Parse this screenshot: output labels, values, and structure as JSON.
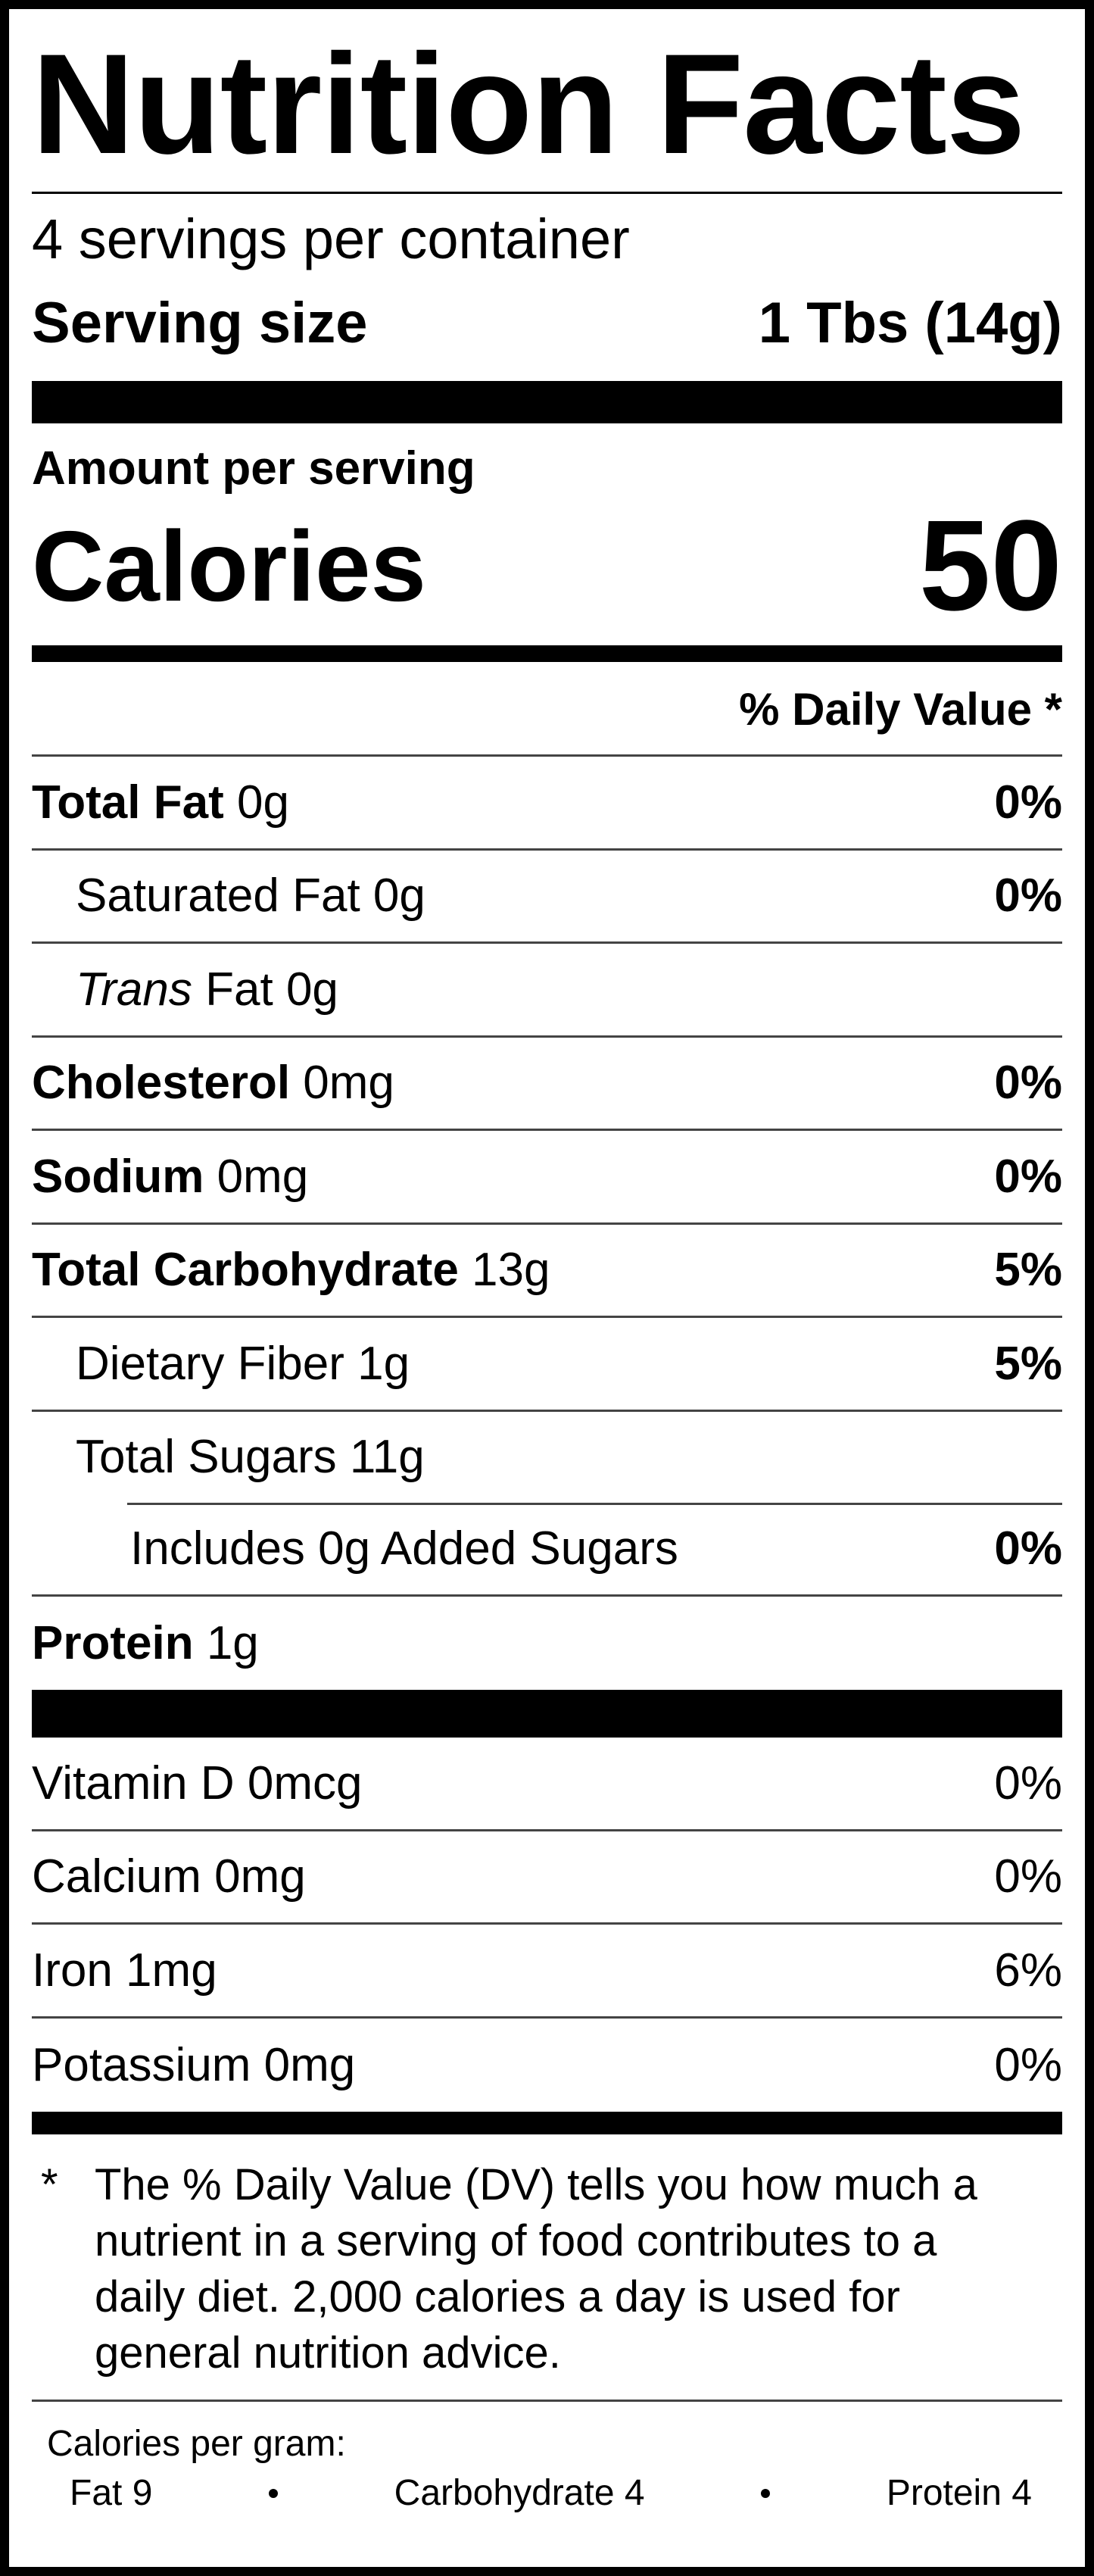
{
  "title": "Nutrition Facts",
  "servings": "4 servings per container",
  "serving_size": {
    "label": "Serving size",
    "value": "1 Tbs (14g)"
  },
  "amount_per_serving": "Amount per serving",
  "calories": {
    "label": "Calories",
    "value": "50"
  },
  "daily_value_header": "% Daily Value *",
  "nutrients": [
    {
      "name": "Total Fat",
      "amount": "0g",
      "dv": "0%"
    },
    {
      "name": "Saturated Fat",
      "amount": "0g",
      "dv": "0%"
    },
    {
      "name_italic": "Trans",
      "name": "Fat",
      "amount": "0g"
    },
    {
      "name": "Cholesterol",
      "amount": "0mg",
      "dv": "0%"
    },
    {
      "name": "Sodium",
      "amount": "0mg",
      "dv": "0%"
    },
    {
      "name": "Total Carbohydrate",
      "amount": "13g",
      "dv": "5%"
    },
    {
      "name": "Dietary Fiber",
      "amount": "1g",
      "dv": "5%"
    },
    {
      "name": "Total Sugars",
      "amount": "11g"
    },
    {
      "text": "Includes 0g Added Sugars",
      "dv": "0%"
    },
    {
      "name": "Protein",
      "amount": "1g"
    }
  ],
  "vitamins": [
    {
      "text": "Vitamin D 0mcg",
      "dv": "0%"
    },
    {
      "text": "Calcium 0mg",
      "dv": "0%"
    },
    {
      "text": "Iron 1mg",
      "dv": "6%"
    },
    {
      "text": "Potassium 0mg",
      "dv": "0%"
    }
  ],
  "footnote": {
    "marker": "*",
    "text": "The % Daily Value (DV) tells you how much a nutrient in a serving of food contributes to a daily diet. 2,000 calories a day is used for general nutrition advice."
  },
  "calories_per_gram": {
    "label": "Calories per gram:",
    "items": [
      "Fat 9",
      "Carbohydrate 4",
      "Protein 4"
    ]
  }
}
